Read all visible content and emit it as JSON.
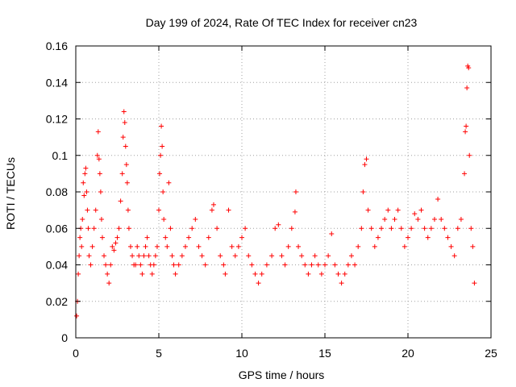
{
  "chart_data": {
    "type": "scatter",
    "title": "Day 199 of 2024, Rate Of TEC Index for receiver cn23",
    "xlabel": "GPS time / hours",
    "ylabel": "ROTI / TECUs",
    "xlim": [
      0,
      25
    ],
    "ylim": [
      0,
      0.16
    ],
    "xticks": [
      0,
      5,
      10,
      15,
      20,
      25
    ],
    "yticks": [
      0,
      0.02,
      0.04,
      0.06,
      0.08,
      0.1,
      0.12,
      0.14,
      0.16
    ],
    "xtick_labels": [
      "0",
      "5",
      "10",
      "15",
      "20",
      "25"
    ],
    "ytick_labels": [
      "0",
      "0.02",
      "0.04",
      "0.06",
      "0.08",
      "0.1",
      "0.12",
      "0.14",
      "0.16"
    ],
    "grid": true,
    "legend": "none",
    "marker": "plus",
    "marker_color": "#ff0000",
    "series": [
      {
        "points": [
          [
            0.05,
            0.012
          ],
          [
            0.1,
            0.02
          ],
          [
            0.15,
            0.035
          ],
          [
            0.2,
            0.045
          ],
          [
            0.25,
            0.055
          ],
          [
            0.3,
            0.06
          ],
          [
            0.35,
            0.05
          ],
          [
            0.4,
            0.065
          ],
          [
            0.45,
            0.085
          ],
          [
            0.5,
            0.078
          ],
          [
            0.55,
            0.09
          ],
          [
            0.6,
            0.093
          ],
          [
            0.65,
            0.08
          ],
          [
            0.7,
            0.07
          ],
          [
            0.75,
            0.06
          ],
          [
            0.8,
            0.045
          ],
          [
            0.9,
            0.04
          ],
          [
            1.0,
            0.05
          ],
          [
            1.1,
            0.06
          ],
          [
            1.2,
            0.07
          ],
          [
            1.3,
            0.1
          ],
          [
            1.35,
            0.113
          ],
          [
            1.4,
            0.098
          ],
          [
            1.45,
            0.09
          ],
          [
            1.5,
            0.08
          ],
          [
            1.55,
            0.065
          ],
          [
            1.6,
            0.055
          ],
          [
            1.7,
            0.045
          ],
          [
            1.8,
            0.04
          ],
          [
            1.9,
            0.035
          ],
          [
            2.0,
            0.03
          ],
          [
            2.1,
            0.04
          ],
          [
            2.2,
            0.05
          ],
          [
            2.3,
            0.048
          ],
          [
            2.4,
            0.052
          ],
          [
            2.5,
            0.055
          ],
          [
            2.6,
            0.06
          ],
          [
            2.7,
            0.075
          ],
          [
            2.8,
            0.09
          ],
          [
            2.85,
            0.11
          ],
          [
            2.9,
            0.124
          ],
          [
            2.95,
            0.118
          ],
          [
            3.0,
            0.105
          ],
          [
            3.05,
            0.095
          ],
          [
            3.1,
            0.085
          ],
          [
            3.15,
            0.07
          ],
          [
            3.2,
            0.06
          ],
          [
            3.3,
            0.05
          ],
          [
            3.4,
            0.045
          ],
          [
            3.5,
            0.04
          ],
          [
            3.6,
            0.04
          ],
          [
            3.7,
            0.05
          ],
          [
            3.8,
            0.045
          ],
          [
            3.9,
            0.04
          ],
          [
            4.0,
            0.035
          ],
          [
            4.1,
            0.045
          ],
          [
            4.2,
            0.05
          ],
          [
            4.3,
            0.055
          ],
          [
            4.4,
            0.045
          ],
          [
            4.5,
            0.04
          ],
          [
            4.6,
            0.035
          ],
          [
            4.7,
            0.04
          ],
          [
            4.8,
            0.045
          ],
          [
            4.9,
            0.05
          ],
          [
            5.0,
            0.07
          ],
          [
            5.05,
            0.09
          ],
          [
            5.1,
            0.1
          ],
          [
            5.15,
            0.116
          ],
          [
            5.2,
            0.105
          ],
          [
            5.25,
            0.08
          ],
          [
            5.3,
            0.065
          ],
          [
            5.4,
            0.055
          ],
          [
            5.5,
            0.05
          ],
          [
            5.6,
            0.085
          ],
          [
            5.7,
            0.06
          ],
          [
            5.8,
            0.045
          ],
          [
            5.9,
            0.04
          ],
          [
            6.0,
            0.035
          ],
          [
            6.2,
            0.04
          ],
          [
            6.4,
            0.045
          ],
          [
            6.6,
            0.05
          ],
          [
            6.8,
            0.055
          ],
          [
            7.0,
            0.06
          ],
          [
            7.2,
            0.065
          ],
          [
            7.4,
            0.05
          ],
          [
            7.6,
            0.045
          ],
          [
            7.8,
            0.04
          ],
          [
            8.0,
            0.055
          ],
          [
            8.2,
            0.07
          ],
          [
            8.3,
            0.073
          ],
          [
            8.5,
            0.06
          ],
          [
            8.7,
            0.045
          ],
          [
            8.9,
            0.04
          ],
          [
            9.0,
            0.035
          ],
          [
            9.2,
            0.07
          ],
          [
            9.4,
            0.05
          ],
          [
            9.6,
            0.045
          ],
          [
            9.8,
            0.05
          ],
          [
            10.0,
            0.055
          ],
          [
            10.2,
            0.06
          ],
          [
            10.4,
            0.045
          ],
          [
            10.6,
            0.04
          ],
          [
            10.8,
            0.035
          ],
          [
            11.0,
            0.03
          ],
          [
            11.2,
            0.035
          ],
          [
            11.5,
            0.04
          ],
          [
            11.8,
            0.045
          ],
          [
            12.0,
            0.06
          ],
          [
            12.2,
            0.062
          ],
          [
            12.4,
            0.045
          ],
          [
            12.6,
            0.04
          ],
          [
            12.8,
            0.05
          ],
          [
            13.0,
            0.06
          ],
          [
            13.2,
            0.069
          ],
          [
            13.25,
            0.08
          ],
          [
            13.4,
            0.05
          ],
          [
            13.6,
            0.045
          ],
          [
            13.8,
            0.04
          ],
          [
            14.0,
            0.035
          ],
          [
            14.2,
            0.04
          ],
          [
            14.4,
            0.045
          ],
          [
            14.6,
            0.04
          ],
          [
            14.8,
            0.035
          ],
          [
            15.0,
            0.04
          ],
          [
            15.2,
            0.045
          ],
          [
            15.4,
            0.057
          ],
          [
            15.6,
            0.04
          ],
          [
            15.8,
            0.035
          ],
          [
            16.0,
            0.03
          ],
          [
            16.2,
            0.035
          ],
          [
            16.4,
            0.04
          ],
          [
            16.6,
            0.045
          ],
          [
            16.8,
            0.04
          ],
          [
            17.0,
            0.05
          ],
          [
            17.2,
            0.06
          ],
          [
            17.3,
            0.08
          ],
          [
            17.4,
            0.095
          ],
          [
            17.5,
            0.098
          ],
          [
            17.6,
            0.07
          ],
          [
            17.8,
            0.06
          ],
          [
            18.0,
            0.05
          ],
          [
            18.2,
            0.055
          ],
          [
            18.4,
            0.06
          ],
          [
            18.6,
            0.065
          ],
          [
            18.8,
            0.07
          ],
          [
            19.0,
            0.06
          ],
          [
            19.2,
            0.065
          ],
          [
            19.4,
            0.07
          ],
          [
            19.6,
            0.06
          ],
          [
            19.8,
            0.05
          ],
          [
            20.0,
            0.055
          ],
          [
            20.2,
            0.06
          ],
          [
            20.4,
            0.068
          ],
          [
            20.6,
            0.065
          ],
          [
            20.8,
            0.07
          ],
          [
            21.0,
            0.06
          ],
          [
            21.2,
            0.055
          ],
          [
            21.4,
            0.06
          ],
          [
            21.6,
            0.065
          ],
          [
            21.8,
            0.076
          ],
          [
            22.0,
            0.065
          ],
          [
            22.2,
            0.06
          ],
          [
            22.4,
            0.055
          ],
          [
            22.6,
            0.05
          ],
          [
            22.8,
            0.045
          ],
          [
            23.0,
            0.06
          ],
          [
            23.2,
            0.065
          ],
          [
            23.4,
            0.09
          ],
          [
            23.45,
            0.113
          ],
          [
            23.5,
            0.116
          ],
          [
            23.55,
            0.137
          ],
          [
            23.6,
            0.149
          ],
          [
            23.65,
            0.148
          ],
          [
            23.7,
            0.1
          ],
          [
            23.8,
            0.06
          ],
          [
            23.9,
            0.05
          ],
          [
            24.0,
            0.03
          ]
        ]
      }
    ]
  }
}
